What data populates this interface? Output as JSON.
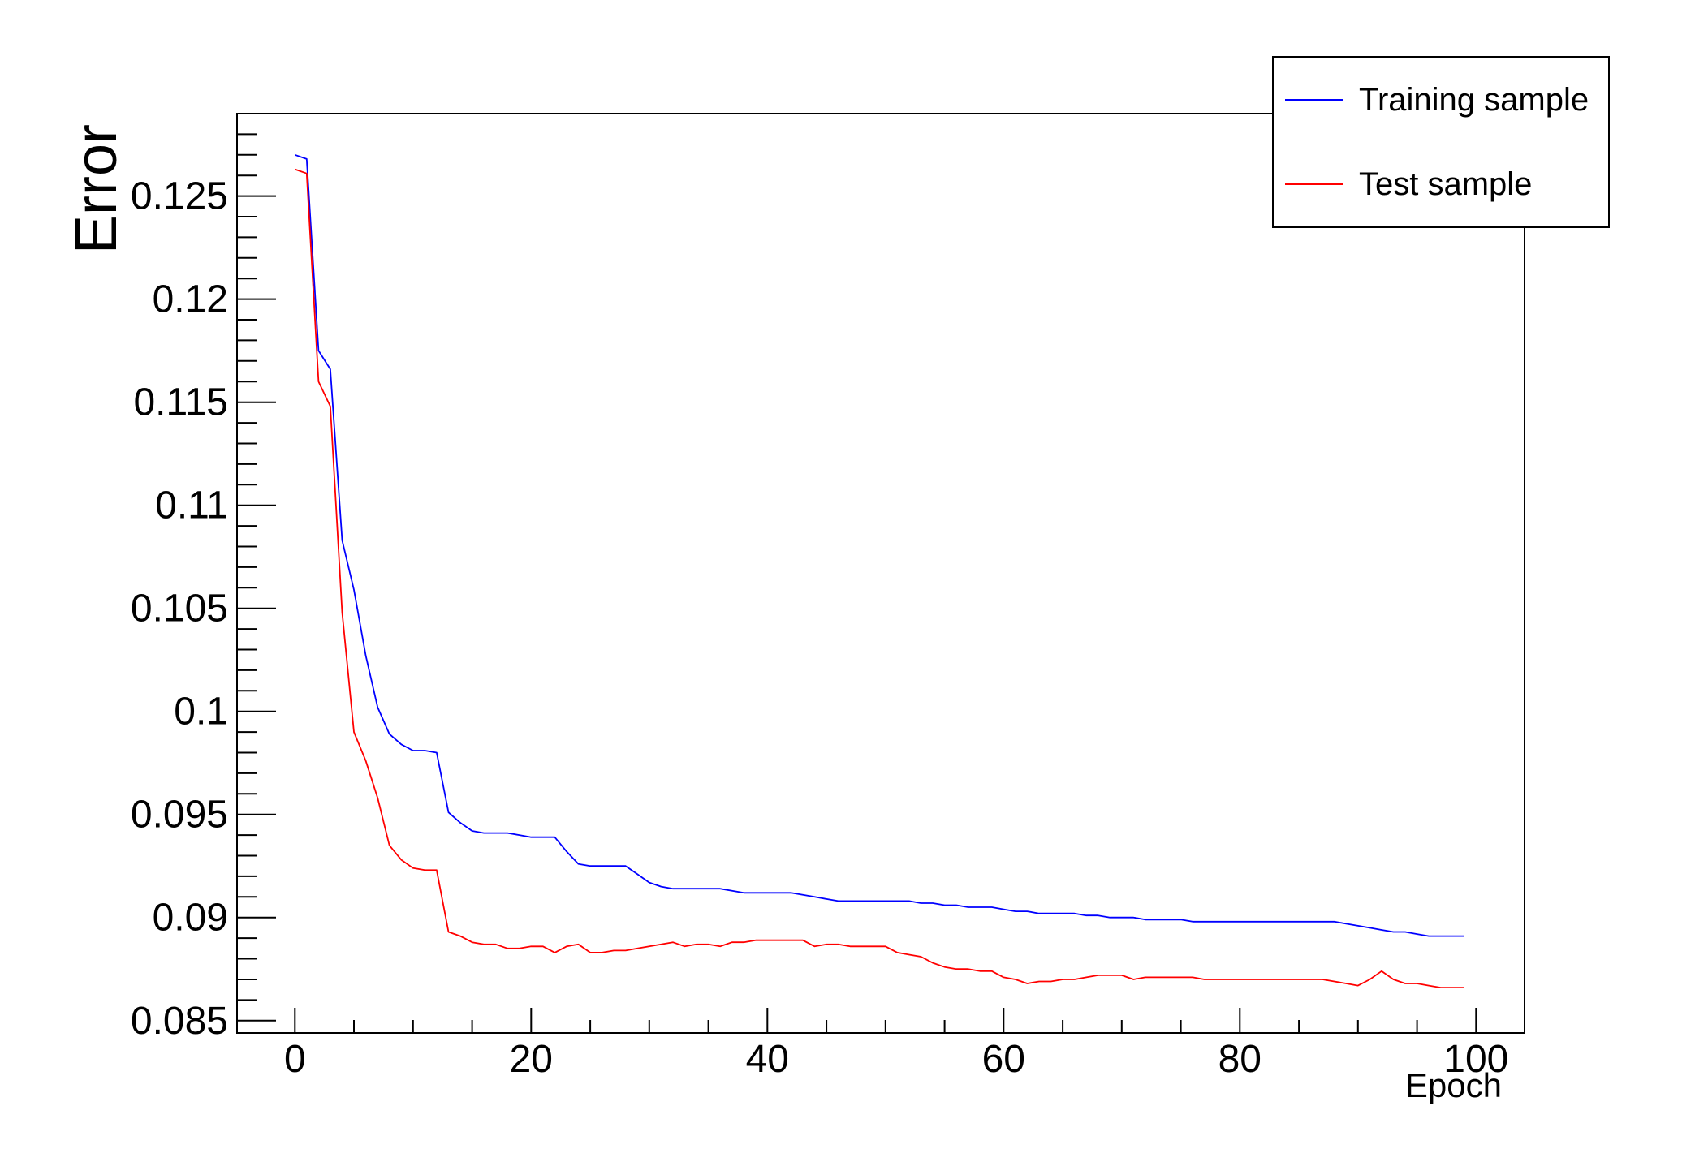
{
  "chart_data": {
    "type": "line",
    "title": "",
    "xlabel": "Epoch",
    "ylabel": "Error",
    "xlim": [
      -4.9,
      104.1
    ],
    "ylim": [
      0.0844,
      0.129
    ],
    "grid": false,
    "legend_position": "top-right",
    "x_major_ticks": [
      0,
      20,
      40,
      60,
      80,
      100
    ],
    "x_major_labels": [
      "0",
      "20",
      "40",
      "60",
      "80",
      "100"
    ],
    "x_minor_step": 5,
    "y_major_ticks": [
      0.085,
      0.09,
      0.095,
      0.1,
      0.105,
      0.11,
      0.115,
      0.12,
      0.125
    ],
    "y_major_labels": [
      "0.085",
      "0.09",
      "0.095",
      "0.1",
      "0.105",
      "0.11",
      "0.115",
      "0.12",
      "0.125"
    ],
    "y_minor_step": 0.001,
    "x": [
      0,
      1,
      2,
      3,
      4,
      5,
      6,
      7,
      8,
      9,
      10,
      11,
      12,
      13,
      14,
      15,
      16,
      17,
      18,
      19,
      20,
      21,
      22,
      23,
      24,
      25,
      26,
      27,
      28,
      29,
      30,
      31,
      32,
      33,
      34,
      35,
      36,
      37,
      38,
      39,
      40,
      41,
      42,
      43,
      44,
      45,
      46,
      47,
      48,
      49,
      50,
      51,
      52,
      53,
      54,
      55,
      56,
      57,
      58,
      59,
      60,
      61,
      62,
      63,
      64,
      65,
      66,
      67,
      68,
      69,
      70,
      71,
      72,
      73,
      74,
      75,
      76,
      77,
      78,
      79,
      80,
      81,
      82,
      83,
      84,
      85,
      86,
      87,
      88,
      89,
      90,
      91,
      92,
      93,
      94,
      95,
      96,
      97,
      98,
      99
    ],
    "series": [
      {
        "name": "Training sample",
        "color": "#0000ff",
        "values": [
          0.127,
          0.1268,
          0.1175,
          0.1166,
          0.1083,
          0.1059,
          0.1027,
          0.1002,
          0.0989,
          0.0984,
          0.0981,
          0.0981,
          0.098,
          0.0951,
          0.0946,
          0.0942,
          0.0941,
          0.0941,
          0.0941,
          0.094,
          0.0939,
          0.0939,
          0.0939,
          0.0932,
          0.0926,
          0.0925,
          0.0925,
          0.0925,
          0.0925,
          0.0921,
          0.0917,
          0.0915,
          0.0914,
          0.0914,
          0.0914,
          0.0914,
          0.0914,
          0.0913,
          0.0912,
          0.0912,
          0.0912,
          0.0912,
          0.0912,
          0.0911,
          0.091,
          0.0909,
          0.0908,
          0.0908,
          0.0908,
          0.0908,
          0.0908,
          0.0908,
          0.0908,
          0.0907,
          0.0907,
          0.0906,
          0.0906,
          0.0905,
          0.0905,
          0.0905,
          0.0904,
          0.0903,
          0.0903,
          0.0902,
          0.0902,
          0.0902,
          0.0902,
          0.0901,
          0.0901,
          0.09,
          0.09,
          0.09,
          0.0899,
          0.0899,
          0.0899,
          0.0899,
          0.0898,
          0.0898,
          0.0898,
          0.0898,
          0.0898,
          0.0898,
          0.0898,
          0.0898,
          0.0898,
          0.0898,
          0.0898,
          0.0898,
          0.0898,
          0.0897,
          0.0896,
          0.0895,
          0.0894,
          0.0893,
          0.0893,
          0.0892,
          0.0891,
          0.0891,
          0.0891,
          0.0891
        ]
      },
      {
        "name": "Test sample",
        "color": "#ff0000",
        "values": [
          0.1263,
          0.1261,
          0.116,
          0.1148,
          0.1048,
          0.099,
          0.0976,
          0.0958,
          0.0935,
          0.0928,
          0.0924,
          0.0923,
          0.0923,
          0.0893,
          0.0891,
          0.0888,
          0.0887,
          0.0887,
          0.0885,
          0.0885,
          0.0886,
          0.0886,
          0.0883,
          0.0886,
          0.0887,
          0.0883,
          0.0883,
          0.0884,
          0.0884,
          0.0885,
          0.0886,
          0.0887,
          0.0888,
          0.0886,
          0.0887,
          0.0887,
          0.0886,
          0.0888,
          0.0888,
          0.0889,
          0.0889,
          0.0889,
          0.0889,
          0.0889,
          0.0886,
          0.0887,
          0.0887,
          0.0886,
          0.0886,
          0.0886,
          0.0886,
          0.0883,
          0.0882,
          0.0881,
          0.0878,
          0.0876,
          0.0875,
          0.0875,
          0.0874,
          0.0874,
          0.0871,
          0.087,
          0.0868,
          0.0869,
          0.0869,
          0.087,
          0.087,
          0.0871,
          0.0872,
          0.0872,
          0.0872,
          0.087,
          0.0871,
          0.0871,
          0.0871,
          0.0871,
          0.0871,
          0.087,
          0.087,
          0.087,
          0.087,
          0.087,
          0.087,
          0.087,
          0.087,
          0.087,
          0.087,
          0.087,
          0.0869,
          0.0868,
          0.0867,
          0.087,
          0.0874,
          0.087,
          0.0868,
          0.0868,
          0.0867,
          0.0866,
          0.0866,
          0.0866
        ]
      }
    ]
  },
  "colors": {
    "frame": "#000000",
    "background": "#ffffff",
    "training": "#0000ff",
    "test": "#ff0000"
  }
}
